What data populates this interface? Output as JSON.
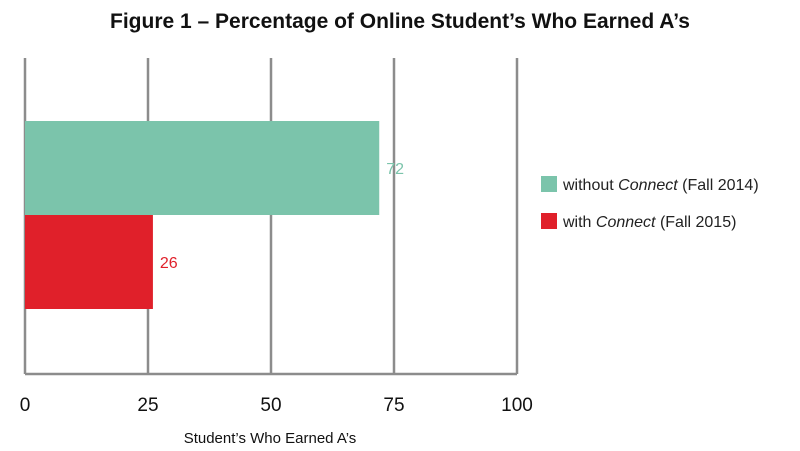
{
  "chart_data": {
    "type": "bar",
    "orientation": "horizontal",
    "title": "Figure 1 – Percentage of Online Student’s Who Earned A’s",
    "xlabel": "Student’s Who Earned A’s",
    "ylabel": "",
    "xlim": [
      0,
      100
    ],
    "x_ticks": [
      "0",
      "25",
      "50",
      "75",
      "100"
    ],
    "grid": "vertical",
    "legend_placement": "right",
    "series": [
      {
        "value": 72,
        "label": "72",
        "color": "#7bc4ab",
        "legend": {
          "prefix": "without ",
          "italic": "Connect",
          "suffix": " (Fall 2014)"
        }
      },
      {
        "value": 26,
        "label": "26",
        "color": "#e0202a",
        "legend": {
          "prefix": "with ",
          "italic": "Connect",
          "suffix": " (Fall 2015)"
        }
      }
    ],
    "colors": {
      "grid": "#8c8c8c",
      "text": "#111111"
    }
  }
}
